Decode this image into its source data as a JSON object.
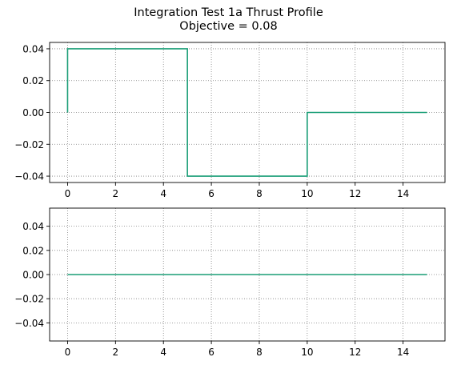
{
  "title": {
    "line1": "Integration Test 1a Thrust Profile",
    "line2": "Objective = 0.08"
  },
  "colors": {
    "series": "#1a9e77",
    "axes": "#000000",
    "grid": "#808080",
    "background": "#ffffff"
  },
  "chart_data": [
    {
      "type": "line",
      "step": true,
      "grid": true,
      "grid_style": "dotted",
      "xlim": [
        -0.75,
        15.75
      ],
      "ylim": [
        -0.044,
        0.044
      ],
      "x_ticks": [
        0,
        2,
        4,
        6,
        8,
        10,
        12,
        14
      ],
      "x_tick_labels": [
        "0",
        "2",
        "4",
        "6",
        "8",
        "10",
        "12",
        "14"
      ],
      "y_ticks": [
        0.04,
        0.02,
        0.0,
        -0.02,
        -0.04
      ],
      "y_tick_labels": [
        "0.04",
        "0.02",
        "0.00",
        "−0.02",
        "−0.04"
      ],
      "series": [
        {
          "x": [
            0,
            0,
            5,
            5,
            10,
            10,
            15
          ],
          "y": [
            0,
            0.04,
            0.04,
            -0.04,
            -0.04,
            0,
            0
          ]
        }
      ]
    },
    {
      "type": "line",
      "step": true,
      "grid": true,
      "grid_style": "dotted",
      "xlim": [
        -0.75,
        15.75
      ],
      "ylim": [
        -0.055,
        0.055
      ],
      "x_ticks": [
        0,
        2,
        4,
        6,
        8,
        10,
        12,
        14
      ],
      "x_tick_labels": [
        "0",
        "2",
        "4",
        "6",
        "8",
        "10",
        "12",
        "14"
      ],
      "y_ticks": [
        0.04,
        0.02,
        0.0,
        -0.02,
        -0.04
      ],
      "y_tick_labels": [
        "0.04",
        "0.02",
        "0.00",
        "−0.02",
        "−0.04"
      ],
      "series": [
        {
          "x": [
            0,
            15
          ],
          "y": [
            0,
            0
          ]
        }
      ]
    }
  ]
}
